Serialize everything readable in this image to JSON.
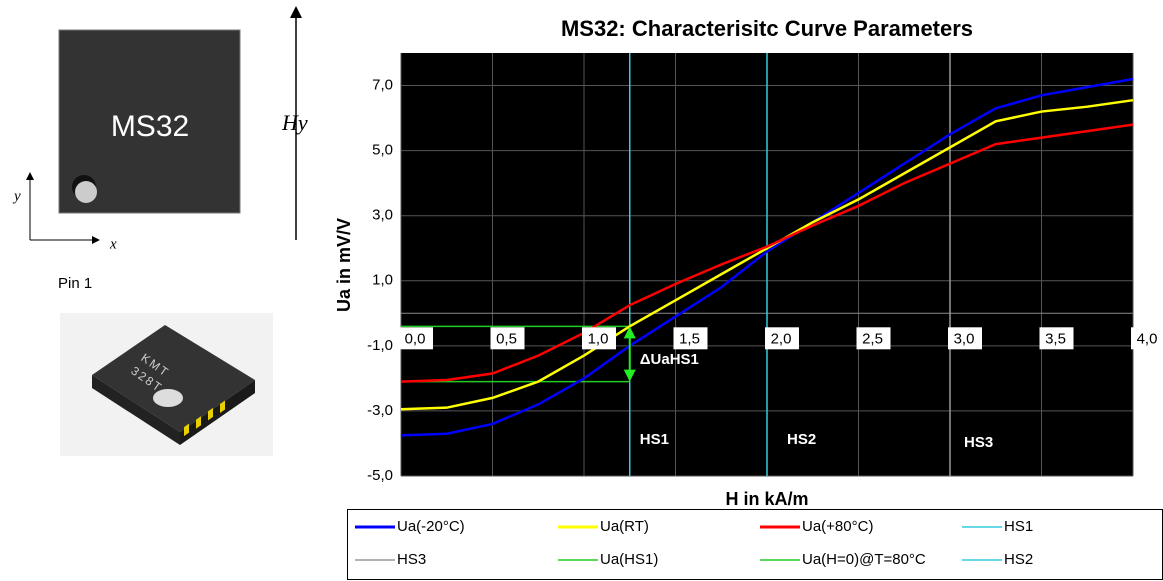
{
  "diagram": {
    "chip_label": "MS32",
    "field_label": "Hy",
    "axis_y": "y",
    "axis_x": "x",
    "pin_label": "Pin 1",
    "package_text_1": "KMT",
    "package_text_2": "328T"
  },
  "chart_data": {
    "type": "line",
    "title": "MS32: Characterisitc Curve Parameters",
    "x_label": "H in kA/m",
    "y_label": "Ua in mV/V",
    "xlim": [
      0,
      4
    ],
    "ylim": [
      -5,
      8
    ],
    "xticks": [
      {
        "value": 0,
        "label": "0,0"
      },
      {
        "value": 0.5,
        "label": "0,5"
      },
      {
        "value": 1,
        "label": "1,0"
      },
      {
        "value": 1.5,
        "label": "1,5"
      },
      {
        "value": 2,
        "label": "2,0"
      },
      {
        "value": 2.5,
        "label": "2,5"
      },
      {
        "value": 3,
        "label": "3,0"
      },
      {
        "value": 3.5,
        "label": "3,5"
      },
      {
        "value": 4,
        "label": "4,0"
      }
    ],
    "yticks": [
      {
        "value": -5,
        "label": "-5,0"
      },
      {
        "value": -3,
        "label": "-3,0"
      },
      {
        "value": -1,
        "label": "-1,0"
      },
      {
        "value": 1,
        "label": "1,0"
      },
      {
        "value": 3,
        "label": "3,0"
      },
      {
        "value": 5,
        "label": "5,0"
      },
      {
        "value": 7,
        "label": "7,0"
      }
    ],
    "grid": true,
    "background": "#000000",
    "legend": "bottom",
    "annotations": [
      "HS1",
      "HS2",
      "HS3",
      "ΔUaHS1"
    ],
    "series": [
      {
        "name": "Ua(-20°C)",
        "color": "#0000ff",
        "x": [
          0,
          0.25,
          0.5,
          0.75,
          1,
          1.25,
          1.5,
          1.75,
          2,
          2.25,
          2.5,
          2.75,
          3,
          3.25,
          3.5,
          3.75,
          4
        ],
        "values": [
          -3.75,
          -3.7,
          -3.4,
          -2.8,
          -2.0,
          -1.0,
          -0.1,
          0.8,
          1.9,
          2.8,
          3.7,
          4.6,
          5.5,
          6.3,
          6.7,
          6.95,
          7.2
        ]
      },
      {
        "name": "Ua(RT)",
        "color": "#ffff00",
        "x": [
          0,
          0.25,
          0.5,
          0.75,
          1,
          1.25,
          1.5,
          1.75,
          2,
          2.25,
          2.5,
          2.75,
          3,
          3.25,
          3.5,
          3.75,
          4
        ],
        "values": [
          -2.95,
          -2.9,
          -2.6,
          -2.1,
          -1.3,
          -0.4,
          0.4,
          1.2,
          2.0,
          2.8,
          3.5,
          4.3,
          5.1,
          5.9,
          6.2,
          6.35,
          6.55
        ]
      },
      {
        "name": "Ua(+80°C)",
        "color": "#ff0000",
        "x": [
          0,
          0.25,
          0.5,
          0.75,
          1,
          1.25,
          1.5,
          1.75,
          2,
          2.25,
          2.5,
          2.75,
          3,
          3.25,
          3.5,
          3.75,
          4
        ],
        "values": [
          -2.1,
          -2.05,
          -1.85,
          -1.3,
          -0.6,
          0.25,
          0.9,
          1.5,
          2.05,
          2.7,
          3.3,
          4.0,
          4.6,
          5.2,
          5.4,
          5.6,
          5.8
        ]
      },
      {
        "name": "HS1",
        "color": "#33ccdd",
        "x": [
          1.25,
          1.25
        ],
        "values": [
          -5,
          8
        ]
      },
      {
        "name": "HS3",
        "color": "#999999",
        "x": [
          3,
          3
        ],
        "values": [
          -5,
          8
        ]
      },
      {
        "name": "Ua(HS1)",
        "color": "#22cc22",
        "x": [
          0,
          1.25
        ],
        "values": [
          -0.4,
          -0.4
        ]
      },
      {
        "name": "Ua(H=0)@T=80°C",
        "color": "#22cc22",
        "x": [
          0,
          1.25
        ],
        "values": [
          -2.1,
          -2.1
        ]
      },
      {
        "name": "HS2",
        "color": "#33ccdd",
        "x": [
          2,
          2
        ],
        "values": [
          -5,
          8
        ]
      }
    ]
  }
}
